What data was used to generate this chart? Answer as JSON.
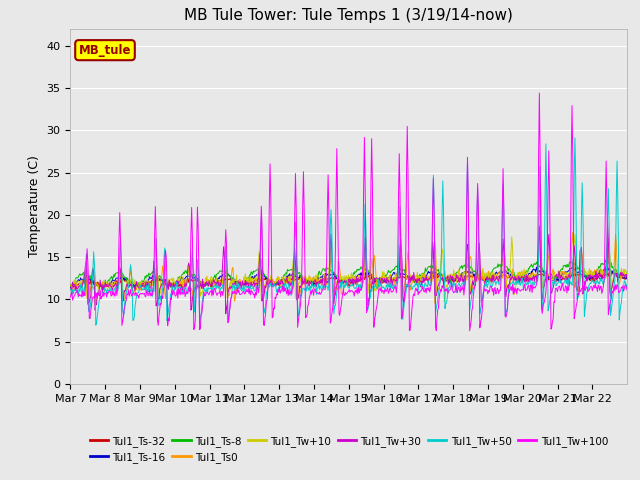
{
  "title": "MB Tule Tower: Tule Temps 1 (3/19/14-now)",
  "ylabel": "Temperature (C)",
  "ylim": [
    0,
    42
  ],
  "yticks": [
    0,
    5,
    10,
    15,
    20,
    25,
    30,
    35,
    40
  ],
  "series_labels": [
    "Tul1_Ts-32",
    "Tul1_Ts-16",
    "Tul1_Ts-8",
    "Tul1_Ts0",
    "Tul1_Tw+10",
    "Tul1_Tw+30",
    "Tul1_Tw+50",
    "Tul1_Tw+100"
  ],
  "series_colors": [
    "#cc0000",
    "#0000cc",
    "#00bb00",
    "#ff9900",
    "#cccc00",
    "#cc00cc",
    "#00cccc",
    "#ff00ff"
  ],
  "legend_box_label": "MB_tule",
  "legend_box_color": "#ffff00",
  "legend_box_border": "#990000",
  "background_color": "#e8e8e8",
  "grid_color": "#ffffff",
  "x_tick_labels": [
    "Mar 7",
    "Mar 8",
    "Mar 9",
    "Mar 10",
    "Mar 11",
    "Mar 12",
    "Mar 13",
    "Mar 14",
    "Mar 15",
    "Mar 16",
    "Mar 17",
    "Mar 18",
    "Mar 19",
    "Mar 20",
    "Mar 21",
    "Mar 22"
  ],
  "title_fontsize": 11,
  "label_fontsize": 9,
  "tick_fontsize": 8
}
